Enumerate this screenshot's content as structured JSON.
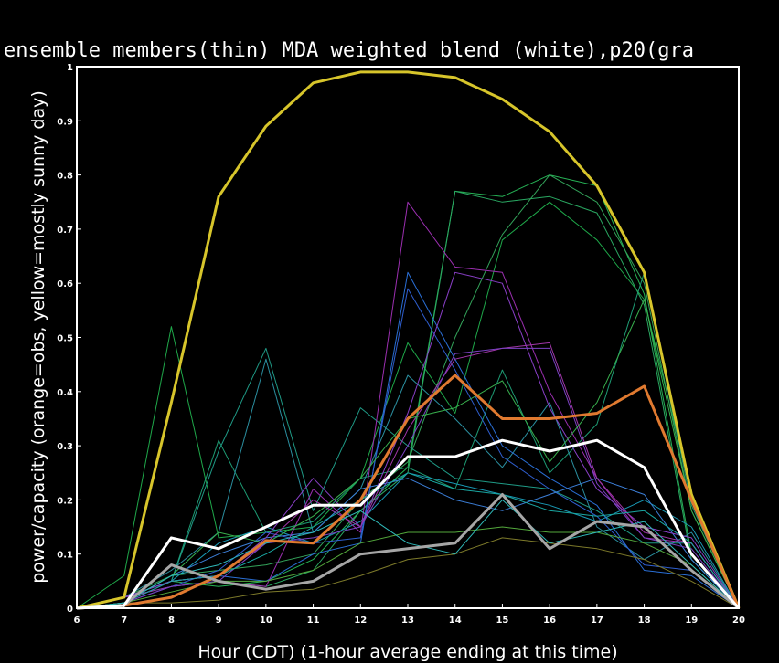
{
  "chart_data": {
    "type": "line",
    "title": "ensemble members(thin) MDA weighted blend (white),p20(gra",
    "xlabel": "Hour (CDT) (1-hour average ending at this time)",
    "ylabel": "power/capacity (orange=obs, yellow=mostly sunny day)",
    "xlim": [
      6,
      20
    ],
    "ylim": [
      0,
      1
    ],
    "x_ticks": [
      6,
      7,
      8,
      9,
      10,
      11,
      12,
      13,
      14,
      15,
      16,
      17,
      18,
      19,
      20
    ],
    "y_ticks": [
      0,
      0.1,
      0.2,
      0.3,
      0.4,
      0.5,
      0.6,
      0.7,
      0.8,
      0.9,
      1
    ],
    "y_tick_labels": [
      "0",
      "0.1",
      "0.2",
      "0.3",
      "0.4",
      "0.5",
      "0.6",
      "0.7",
      "0.8",
      "0.9",
      "1"
    ],
    "grid": false,
    "x": [
      6,
      7,
      8,
      9,
      10,
      11,
      12,
      13,
      14,
      15,
      16,
      17,
      18,
      19,
      20
    ],
    "series": [
      {
        "color": "#1fa84a",
        "width": 1,
        "values": [
          0,
          0.06,
          0.52,
          0.13,
          0.14,
          0.15,
          0.24,
          0.49,
          0.36,
          0.68,
          0.75,
          0.68,
          0.57,
          0.21,
          0
        ]
      },
      {
        "color": "#26b356",
        "width": 1,
        "values": [
          0,
          0.02,
          0.05,
          0.04,
          0.05,
          0.09,
          0.18,
          0.26,
          0.77,
          0.76,
          0.8,
          0.78,
          0.58,
          0.1,
          0
        ]
      },
      {
        "color": "#2aa862",
        "width": 1,
        "values": [
          0,
          0.02,
          0.04,
          0.05,
          0.04,
          0.07,
          0.18,
          0.25,
          0.77,
          0.75,
          0.76,
          0.73,
          0.56,
          0.09,
          0
        ]
      },
      {
        "color": "#33a35a",
        "width": 1,
        "values": [
          0,
          0.02,
          0.06,
          0.07,
          0.08,
          0.1,
          0.2,
          0.27,
          0.5,
          0.69,
          0.8,
          0.75,
          0.6,
          0.18,
          0
        ]
      },
      {
        "color": "#1e9c74",
        "width": 1,
        "values": [
          0,
          0.02,
          0.05,
          0.31,
          0.14,
          0.16,
          0.24,
          0.26,
          0.22,
          0.44,
          0.25,
          0.34,
          0.62,
          0.19,
          0
        ]
      },
      {
        "color": "#1f9a86",
        "width": 1,
        "values": [
          0,
          0.02,
          0.05,
          0.29,
          0.48,
          0.18,
          0.37,
          0.3,
          0.24,
          0.23,
          0.22,
          0.18,
          0.12,
          0.12,
          0
        ]
      },
      {
        "color": "#2b8fa0",
        "width": 1,
        "values": [
          0,
          0.02,
          0.07,
          0.14,
          0.46,
          0.14,
          0.22,
          0.43,
          0.35,
          0.26,
          0.38,
          0.15,
          0.09,
          0.14,
          0
        ]
      },
      {
        "color": "#199ab6",
        "width": 1,
        "values": [
          0,
          0.01,
          0.05,
          0.12,
          0.15,
          0.12,
          0.16,
          0.25,
          0.23,
          0.21,
          0.19,
          0.16,
          0.2,
          0.15,
          0
        ]
      },
      {
        "color": "#2a6fd6",
        "width": 1,
        "values": [
          0,
          0.02,
          0.05,
          0.06,
          0.05,
          0.1,
          0.12,
          0.62,
          0.46,
          0.3,
          0.24,
          0.19,
          0.07,
          0.06,
          0
        ]
      },
      {
        "color": "#2f5fd0",
        "width": 1,
        "values": [
          0,
          0.01,
          0.04,
          0.07,
          0.14,
          0.12,
          0.13,
          0.59,
          0.44,
          0.28,
          0.22,
          0.17,
          0.08,
          0.07,
          0
        ]
      },
      {
        "color": "#3c7fd8",
        "width": 1,
        "values": [
          0,
          0.01,
          0.06,
          0.1,
          0.13,
          0.14,
          0.22,
          0.24,
          0.2,
          0.18,
          0.21,
          0.24,
          0.21,
          0.09,
          0
        ]
      },
      {
        "color": "#9b2fb0",
        "width": 1,
        "values": [
          0,
          0.02,
          0.04,
          0.05,
          0.04,
          0.22,
          0.14,
          0.75,
          0.63,
          0.62,
          0.4,
          0.24,
          0.13,
          0.12,
          0
        ]
      },
      {
        "color": "#8a3fc8",
        "width": 1,
        "values": [
          0,
          0.02,
          0.05,
          0.06,
          0.13,
          0.24,
          0.15,
          0.36,
          0.62,
          0.6,
          0.37,
          0.22,
          0.15,
          0.13,
          0
        ]
      },
      {
        "color": "#a036a8",
        "width": 1,
        "values": [
          0,
          0.01,
          0.05,
          0.06,
          0.12,
          0.2,
          0.15,
          0.33,
          0.46,
          0.48,
          0.49,
          0.24,
          0.14,
          0.12,
          0
        ]
      },
      {
        "color": "#7c42c4",
        "width": 1,
        "values": [
          0,
          0.01,
          0.04,
          0.05,
          0.12,
          0.13,
          0.15,
          0.3,
          0.47,
          0.48,
          0.48,
          0.23,
          0.13,
          0.11,
          0
        ]
      },
      {
        "color": "#38b04e",
        "width": 1,
        "values": [
          0,
          0.01,
          0.06,
          0.14,
          0.12,
          0.17,
          0.24,
          0.35,
          0.37,
          0.42,
          0.27,
          0.38,
          0.57,
          0.18,
          0
        ]
      },
      {
        "color": "#53a83c",
        "width": 1,
        "values": [
          0,
          0.01,
          0.03,
          0.05,
          0.05,
          0.07,
          0.12,
          0.14,
          0.14,
          0.15,
          0.14,
          0.14,
          0.12,
          0.08,
          0
        ]
      },
      {
        "color": "#7d7a2a",
        "width": 1,
        "values": [
          0,
          0.01,
          0.01,
          0.015,
          0.03,
          0.035,
          0.06,
          0.09,
          0.1,
          0.13,
          0.12,
          0.11,
          0.09,
          0.05,
          0
        ]
      },
      {
        "color": "#1aa7a2",
        "width": 1,
        "values": [
          0,
          0.01,
          0.05,
          0.06,
          0.1,
          0.15,
          0.2,
          0.25,
          0.22,
          0.21,
          0.18,
          0.17,
          0.18,
          0.12,
          0
        ]
      },
      {
        "color": "#2fb9b9",
        "width": 1,
        "values": [
          0,
          0.01,
          0.06,
          0.08,
          0.12,
          0.14,
          0.18,
          0.12,
          0.1,
          0.2,
          0.12,
          0.14,
          0.16,
          0.08,
          0
        ]
      },
      {
        "color": "#d7c52b",
        "width": 3,
        "values": [
          0,
          0.02,
          0.38,
          0.76,
          0.89,
          0.97,
          0.99,
          0.99,
          0.98,
          0.94,
          0.88,
          0.78,
          0.62,
          0.21,
          0
        ]
      },
      {
        "color": "#e07a30",
        "width": 3,
        "values": [
          0,
          0.005,
          0.02,
          0.06,
          0.125,
          0.12,
          0.2,
          0.35,
          0.43,
          0.35,
          0.35,
          0.36,
          0.41,
          0.2,
          0
        ]
      },
      {
        "color": "#a6a6a6",
        "width": 3,
        "values": [
          0,
          0.005,
          0.08,
          0.05,
          0.035,
          0.05,
          0.1,
          0.11,
          0.12,
          0.21,
          0.11,
          0.16,
          0.15,
          0.07,
          0
        ]
      },
      {
        "color": "#ffffff",
        "width": 3,
        "values": [
          0,
          0.005,
          0.13,
          0.11,
          0.15,
          0.19,
          0.19,
          0.28,
          0.28,
          0.31,
          0.29,
          0.31,
          0.26,
          0.1,
          0
        ]
      }
    ]
  }
}
